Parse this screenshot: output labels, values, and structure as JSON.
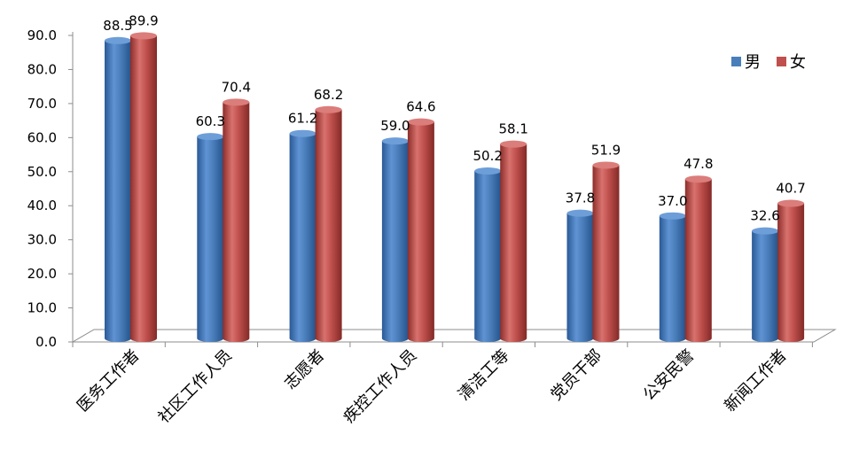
{
  "chart_data": {
    "type": "bar",
    "categories": [
      "医务工作者",
      "社区工作人员",
      "志愿者",
      "疾控工作人员",
      "清洁工等",
      "党员干部",
      "公安民警",
      "新闻工作者"
    ],
    "series": [
      {
        "name": "男",
        "color": "#4a7ebb",
        "values": [
          88.5,
          60.3,
          61.2,
          59.0,
          50.2,
          37.8,
          37.0,
          32.6
        ]
      },
      {
        "name": "女",
        "color": "#c0504d",
        "values": [
          89.9,
          70.4,
          68.2,
          64.6,
          58.1,
          51.9,
          47.8,
          40.7
        ]
      }
    ],
    "y_ticks": [
      "0.0",
      "10.0",
      "20.0",
      "30.0",
      "40.0",
      "50.0",
      "60.0",
      "70.0",
      "80.0",
      "90.0"
    ],
    "ylim": [
      0,
      90
    ],
    "legend_position": "top-right",
    "style": "3d-cylinder"
  }
}
